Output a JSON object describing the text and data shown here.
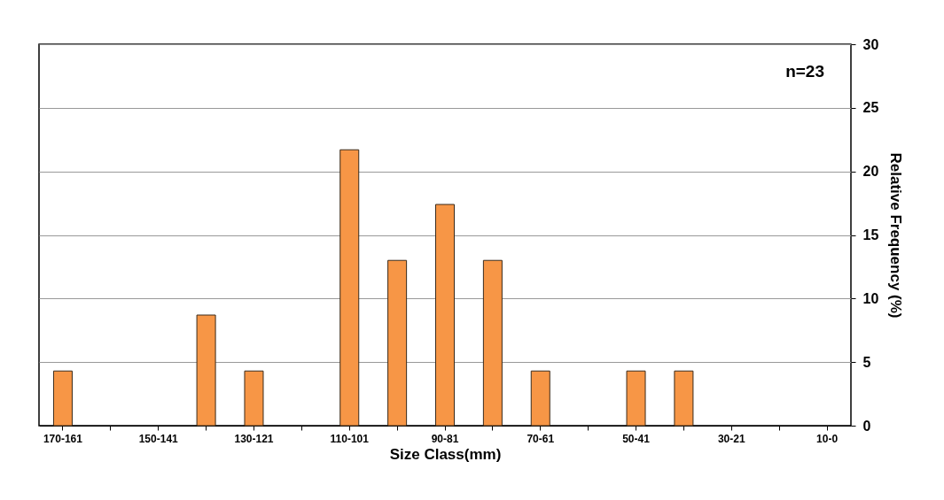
{
  "chart_data": {
    "type": "bar",
    "categories": [
      "170-161",
      null,
      "150-141",
      null,
      "130-121",
      null,
      "110-101",
      null,
      "90-81",
      null,
      "70-61",
      null,
      "50-41",
      null,
      "30-21",
      null,
      "10-0"
    ],
    "values": [
      4.3,
      0,
      0,
      8.7,
      4.3,
      0,
      21.7,
      13.0,
      17.4,
      13.0,
      4.3,
      0,
      4.3,
      4.3,
      0,
      0,
      0
    ],
    "color": "#f79646",
    "xlabel": "Size Class(mm)",
    "ylabel": "Relative Frequency (%)",
    "ylim": [
      0,
      30
    ],
    "yticks": [
      0,
      5,
      10,
      15,
      20,
      25,
      30
    ],
    "grid": "y",
    "annotations": [
      "n=23"
    ]
  }
}
